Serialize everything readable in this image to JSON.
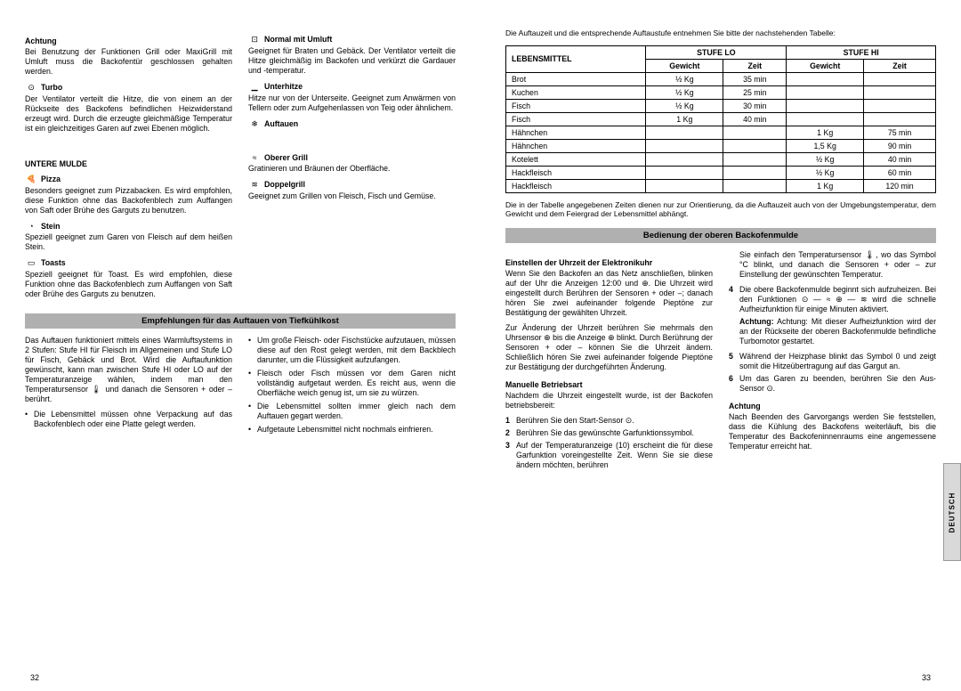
{
  "left": {
    "achtung": {
      "title": "Achtung",
      "body": "Bei Benutzung der Funktionen Grill oder MaxiGrill mit Umluft muss die Backofentür geschlossen gehalten werden."
    },
    "items1": [
      {
        "icon": "⊙",
        "title": "Turbo",
        "body": "Der Ventilator verteilt die Hitze, die von einem an der Rückseite des Backofens befindlichen Heizwiderstand erzeugt wird. Durch die erzeugte gleichmäßige Temperatur ist ein gleichzeitiges Garen auf zwei Ebenen möglich."
      }
    ],
    "untereMulde": "UNTERE MULDE",
    "items2": [
      {
        "icon": "🍕",
        "title": "Pizza",
        "body": "Besonders geeignet zum Pizzabacken. Es wird empfohlen, diese Funktion ohne das Backofenblech zum Auffangen von Saft oder Brühe des Garguts zu benutzen."
      },
      {
        "icon": "◔",
        "title": "Stein",
        "body": "Speziell geeignet zum Garen von Fleisch auf dem heißen Stein."
      },
      {
        "icon": "▭",
        "title": "Toasts",
        "body": "Speziell geeignet für Toast. Es wird empfohlen, diese Funktion ohne das Backofenblech zum Auffangen von Saft oder Brühe des Garguts zu benutzen."
      }
    ],
    "items3": [
      {
        "icon": "⊡",
        "title": "Normal mit Umluft",
        "body": "Geeignet für Braten und Gebäck. Der Ventilator verteilt die Hitze gleichmäßig im Backofen und verkürzt die Gardauer und -temperatur."
      },
      {
        "icon": "▁",
        "title": "Unterhitze",
        "body": "Hitze nur von der Unterseite. Geeignet zum Anwärmen von Tellern oder zum Aufgehenlassen von Teig oder ähnlichem."
      },
      {
        "icon": "❄",
        "title": "Auftauen",
        "body": ""
      },
      {
        "icon": "≈",
        "title": "Oberer Grill",
        "body": "Gratinieren und Bräunen der Oberfläche."
      },
      {
        "icon": "≋",
        "title": "Doppelgrill",
        "body": "Geeignet zum Grillen von Fleisch, Fisch und Gemüse."
      }
    ],
    "bar1": "Empfehlungen für das Auftauen von Tiefkühlkost",
    "defrostIntro": "Das Auftauen funktioniert mittels eines Warmluftsystems in 2 Stufen: Stufe HI für Fleisch im Allgemeinen und Stufe LO für Fisch, Gebäck und Brot. Wird die Auftaufunktion gewünscht, kann man zwischen Stufe HI oder LO auf der Temperaturanzeige wählen, indem man den Temperatursensor 🌡 und danach die Sensoren + oder – berührt.",
    "list1": [
      "Die Lebensmittel müssen ohne Verpackung auf das Backofenblech oder eine Platte gelegt werden."
    ],
    "list2": [
      "Um große Fleisch- oder Fischstücke aufzutauen, müssen diese auf den Rost gelegt werden, mit dem Backblech darunter, um die Flüssigkeit aufzufangen.",
      "Fleisch oder Fisch müssen vor dem Garen nicht vollständig aufgetaut werden. Es reicht aus, wenn die Oberfläche weich genug ist, um sie zu würzen.",
      "Die Lebensmittel sollten immer gleich nach dem Auftauen gegart werden.",
      "Aufgetaute Lebensmittel nicht nochmals einfrieren."
    ],
    "pageNum": "32"
  },
  "right": {
    "tableIntro": "Die Auftauzeit und die entsprechende Auftaustufe entnehmen Sie bitte der nachstehenden Tabelle:",
    "headers": {
      "food": "LEBENSMITTEL",
      "lo": "STUFE LO",
      "hi": "STUFE HI",
      "weight": "Gewicht",
      "time": "Zeit"
    },
    "rows": [
      {
        "food": "Brot",
        "loW": "½ Kg",
        "loT": "35 min",
        "hiW": "",
        "hiT": ""
      },
      {
        "food": "Kuchen",
        "loW": "½ Kg",
        "loT": "25 min",
        "hiW": "",
        "hiT": ""
      },
      {
        "food": "Fisch",
        "loW": "½ Kg",
        "loT": "30 min",
        "hiW": "",
        "hiT": ""
      },
      {
        "food": "Fisch",
        "loW": "1 Kg",
        "loT": "40 min",
        "hiW": "",
        "hiT": ""
      },
      {
        "food": "Hähnchen",
        "loW": "",
        "loT": "",
        "hiW": "1 Kg",
        "hiT": "75 min"
      },
      {
        "food": "Hähnchen",
        "loW": "",
        "loT": "",
        "hiW": "1,5 Kg",
        "hiT": "90 min"
      },
      {
        "food": "Kotelett",
        "loW": "",
        "loT": "",
        "hiW": "½ Kg",
        "hiT": "40 min"
      },
      {
        "food": "Hackfleisch",
        "loW": "",
        "loT": "",
        "hiW": "½ Kg",
        "hiT": "60 min"
      },
      {
        "food": "Hackfleisch",
        "loW": "",
        "loT": "",
        "hiW": "1 Kg",
        "hiT": "120 min"
      }
    ],
    "tableNote": "Die in der Tabelle angegebenen Zeiten dienen nur zur Orientierung, da die Auftauzeit auch von der Umgebungstemperatur, dem Gewicht und dem Feiergrad der Lebensmittel abhängt.",
    "bar2": "Bedienung der oberen Backofenmulde",
    "s1title": "Einstellen der Uhrzeit der Elektronikuhr",
    "s1p1": "Wenn Sie den Backofen an das Netz anschließen, blinken auf der Uhr die Anzeigen 12:00 und ⊕. Die Uhrzeit wird eingestellt durch Berühren der Sensoren + oder –; danach hören Sie zwei aufeinander folgende Pieptöne zur Bestätigung der gewählten Uhrzeit.",
    "s1p2": "Zur Änderung der Uhrzeit berühren Sie mehrmals den Uhrsensor ⊕ bis die Anzeige ⊕ blinkt. Durch Berührung der Sensoren + oder – können Sie die Uhrzeit ändern. Schließlich hören Sie zwei aufeinander folgende Pieptöne zur Bestätigung der durchgeführten Änderung.",
    "s2title": "Manuelle Betriebsart",
    "s2p1": "Nachdem die Uhrzeit eingestellt wurde, ist der Backofen betriebsbereit:",
    "ol": [
      "Berühren Sie den Start-Sensor ⊙.",
      "Berühren Sie das gewünschte Garfunktionssymbol.",
      "Auf der Temperaturanzeige (10) erscheint die für diese Garfunktion voreingestellte Zeit. Wenn Sie sie diese ändern möchten, berühren"
    ],
    "cont": "Sie einfach den Temperatursensor 🌡, wo das Symbol °C blinkt, und danach die Sensoren + oder – zur Einstellung der gewünschten Temperatur.",
    "ol2": [
      "Die obere Backofenmulde beginnt sich aufzuheizen. Bei den Funktionen ⊙ — ≈ ⊕ — ≋ wird die schnelle Aufheizfunktion für einige Minuten aktiviert."
    ],
    "note2": "Achtung: Mit dieser Aufheizfunktion wird der an der Rückseite der oberen Backofenmulde befindliche Turbomotor gestartet.",
    "ol3": [
      "Während der Heizphase blinkt das Symbol 0 und zeigt somit die Hitzeübertragung auf das Gargut an.",
      "Um das Garen zu beenden, berühren Sie den Aus-Sensor ⊙."
    ],
    "s3title": "Achtung",
    "s3p": "Nach Beenden des Garvorgangs werden Sie feststellen, dass die Kühlung des Backofens weiterläuft, bis die Temperatur des Backofeninnenraums eine angemessene Temperatur erreicht hat.",
    "sideTab": "DEUTSCH",
    "pageNum": "33"
  }
}
